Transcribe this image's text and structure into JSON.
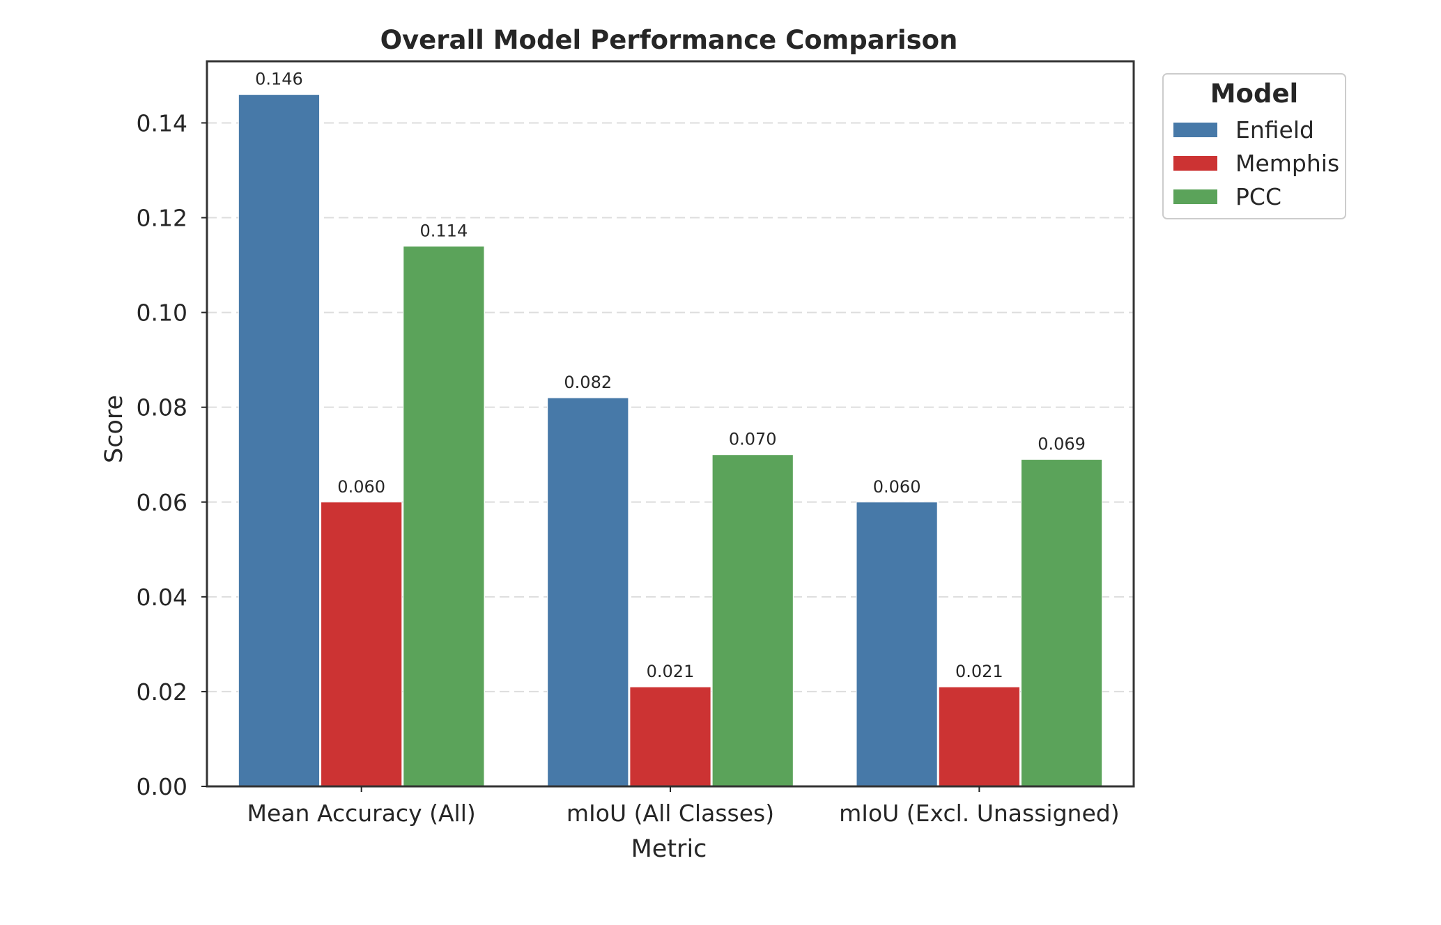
{
  "chart_data": {
    "type": "bar",
    "title": "Overall Model Performance Comparison",
    "xlabel": "Metric",
    "ylabel": "Score",
    "categories": [
      "Mean Accuracy (All)",
      "mIoU (All Classes)",
      "mIoU (Excl. Unassigned)"
    ],
    "series": [
      {
        "name": "Enfield",
        "color": "#4779a8",
        "values": [
          0.146,
          0.082,
          0.06
        ],
        "labels": [
          "0.146",
          "0.082",
          "0.060"
        ]
      },
      {
        "name": "Memphis",
        "color": "#cc3333",
        "values": [
          0.06,
          0.021,
          0.021
        ],
        "labels": [
          "0.060",
          "0.021",
          "0.021"
        ]
      },
      {
        "name": "PCC",
        "color": "#5ba35a",
        "values": [
          0.114,
          0.07,
          0.069
        ],
        "labels": [
          "0.114",
          "0.070",
          "0.069"
        ]
      }
    ],
    "ylim": [
      0,
      0.153
    ],
    "yticks": [
      0.0,
      0.02,
      0.04,
      0.06,
      0.08,
      0.1,
      0.12,
      0.14
    ],
    "ytick_labels": [
      "0.00",
      "0.02",
      "0.04",
      "0.06",
      "0.08",
      "0.10",
      "0.12",
      "0.14"
    ],
    "grid": true,
    "legend": {
      "title": "Model",
      "placement": "outside-right"
    }
  }
}
